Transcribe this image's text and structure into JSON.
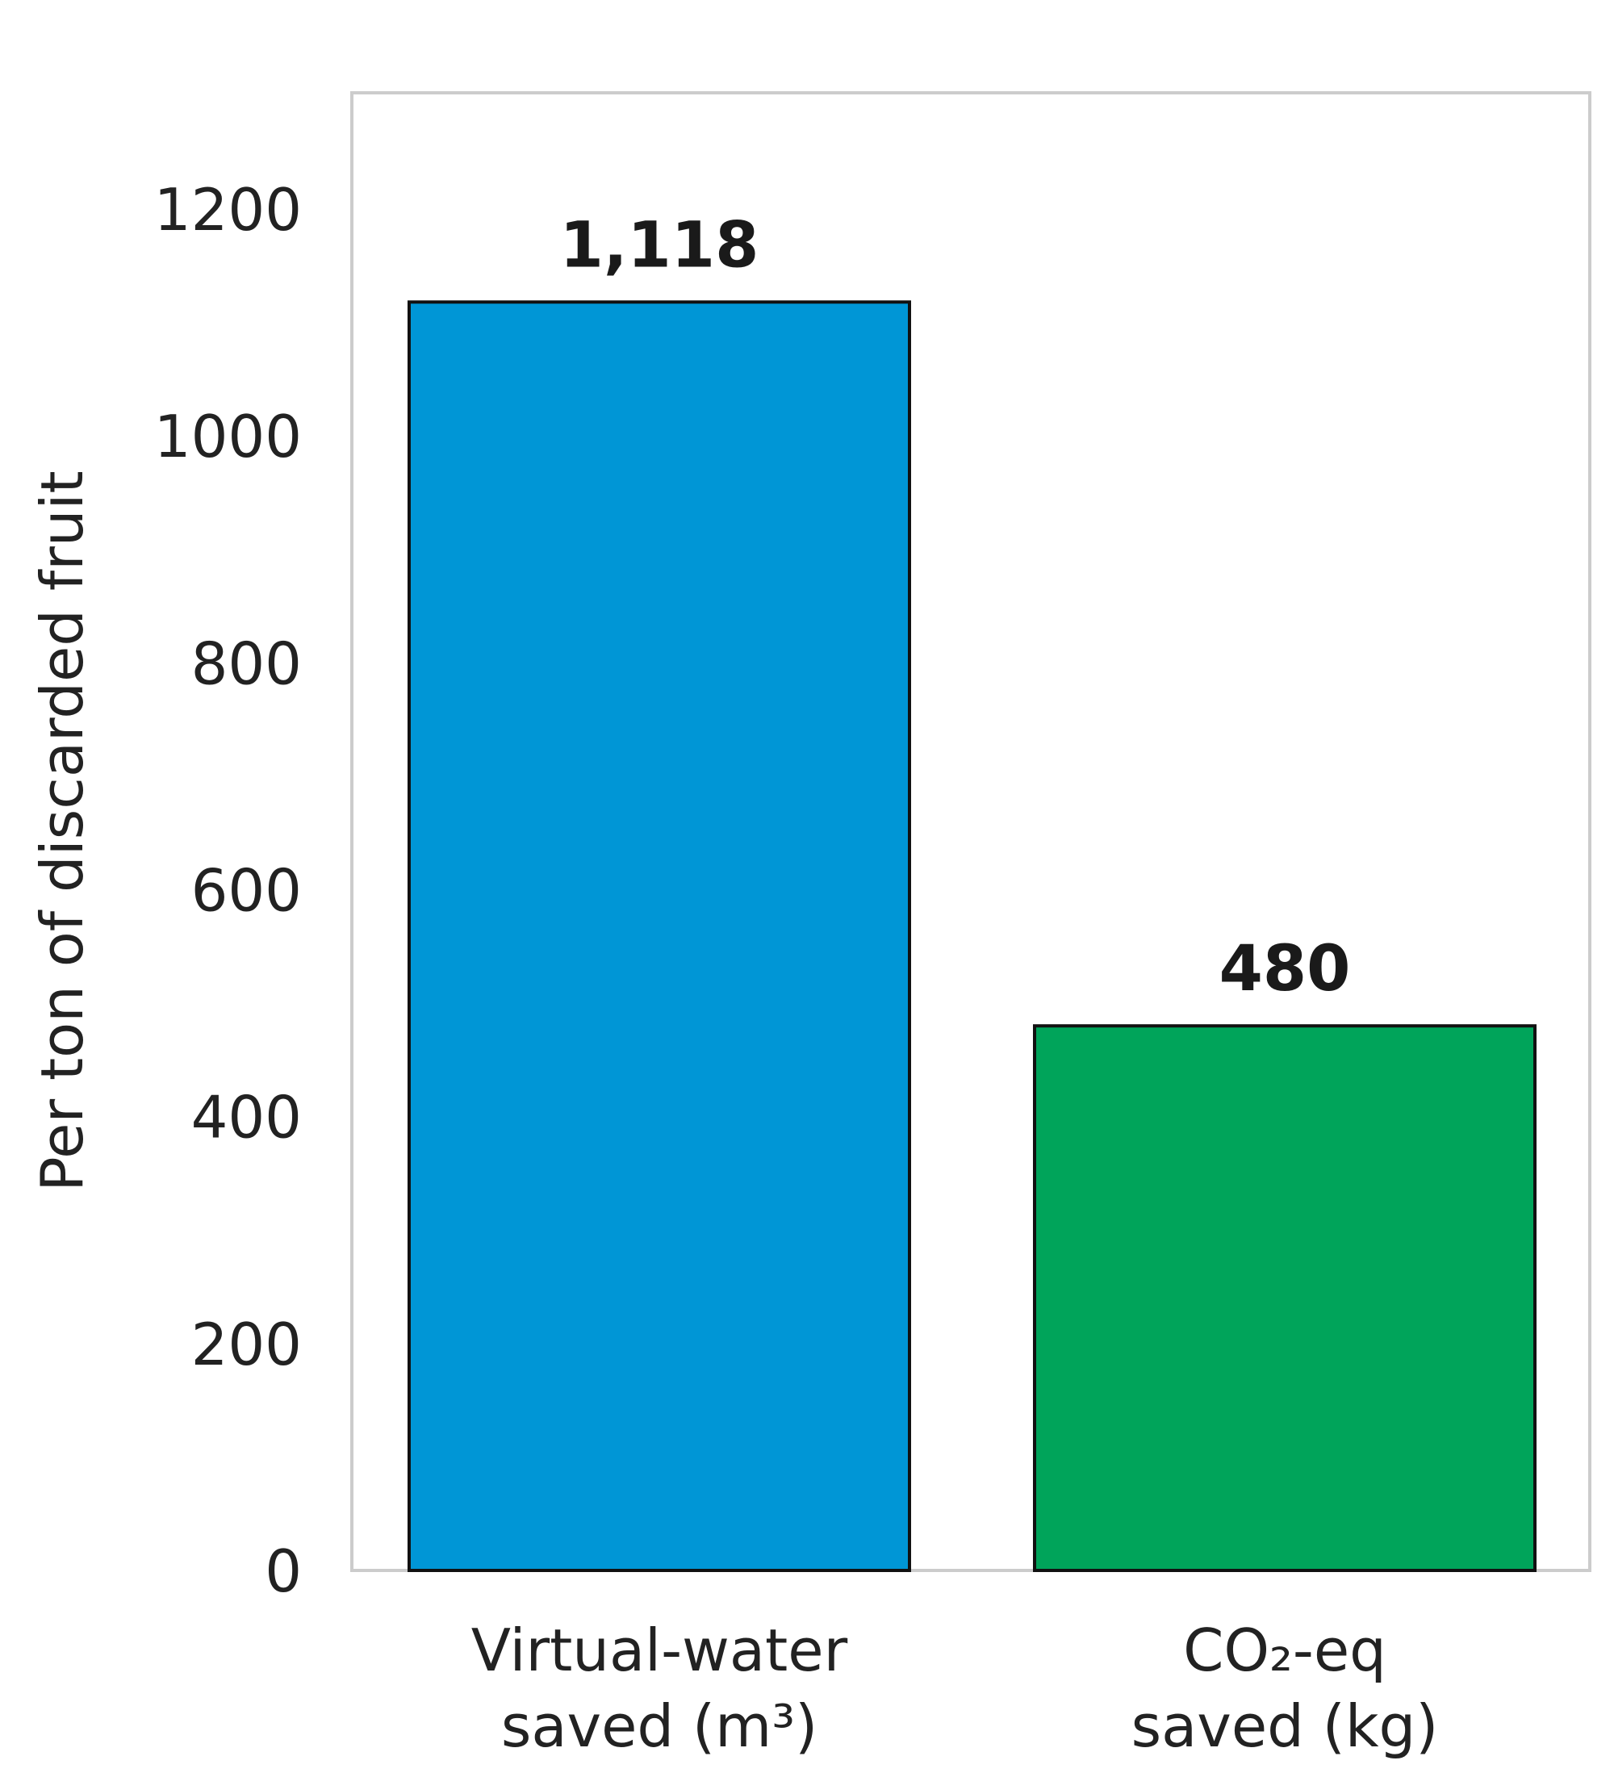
{
  "chart_data": {
    "type": "bar",
    "categories": [
      [
        "Virtual-water",
        "saved (m³)"
      ],
      [
        "CO₂-eq",
        "saved (kg)"
      ]
    ],
    "values": [
      1118,
      480
    ],
    "data_labels": [
      "1,118",
      "480"
    ],
    "colors": [
      "#0096D6",
      "#00A45A"
    ],
    "ylabel": "Per ton of discarded fruit",
    "ylim": [
      0,
      1300
    ],
    "yticks": [
      0,
      200,
      400,
      600,
      800,
      1000,
      1200
    ],
    "grid": false,
    "frame_color": "#cccccc",
    "bar_edge_color": "#111111"
  }
}
